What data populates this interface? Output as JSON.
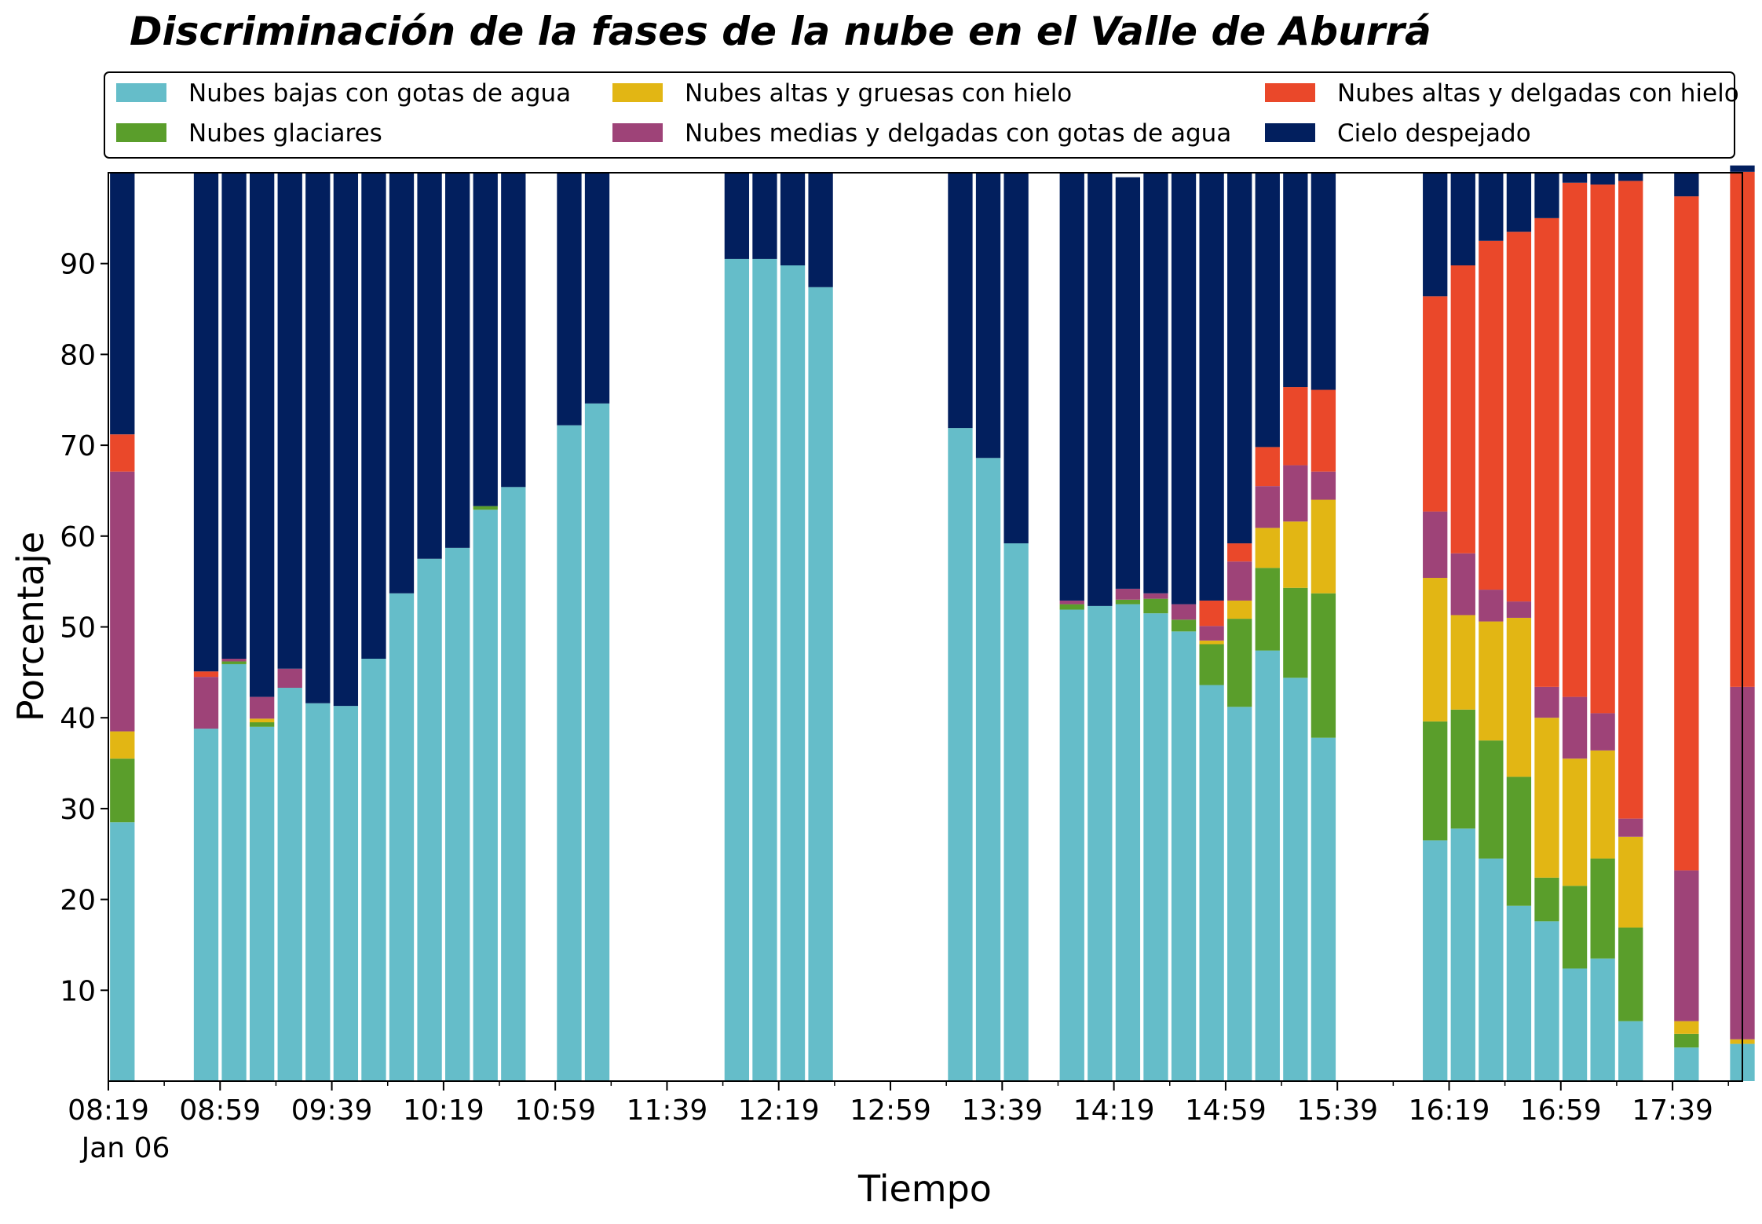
{
  "chart_data": {
    "type": "bar",
    "stacked": true,
    "title": "Discriminación de la fases de la nube en el Valle de Aburrá",
    "xlabel": "Tiempo",
    "ylabel": "Porcentaje",
    "ylim": [
      0,
      100
    ],
    "yticks": [
      10,
      20,
      30,
      40,
      50,
      60,
      70,
      80,
      90
    ],
    "xlim": [
      "08:19",
      "18:04"
    ],
    "xtick_labels": [
      "08:19",
      "08:59",
      "09:39",
      "10:19",
      "10:59",
      "11:39",
      "12:19",
      "12:59",
      "13:39",
      "14:19",
      "14:59",
      "15:39",
      "16:19",
      "16:59",
      "17:39"
    ],
    "x_date_label": "Jan 06",
    "grid": false,
    "legend_position": "top",
    "legend_columns": 3,
    "x": [
      "08:19",
      "08:49",
      "08:59",
      "09:09",
      "09:19",
      "09:29",
      "09:39",
      "09:49",
      "09:59",
      "10:09",
      "10:19",
      "10:29",
      "10:39",
      "10:59",
      "11:09",
      "11:59",
      "12:09",
      "12:19",
      "12:29",
      "13:19",
      "13:29",
      "13:39",
      "13:59",
      "14:09",
      "14:19",
      "14:29",
      "14:39",
      "14:49",
      "14:59",
      "15:09",
      "15:19",
      "15:29",
      "16:09",
      "16:19",
      "16:29",
      "16:39",
      "16:49",
      "16:59",
      "17:09",
      "17:19",
      "17:39",
      "17:59"
    ],
    "series": [
      {
        "name": "Nubes bajas con gotas de agua",
        "color": "#65bdc9",
        "values": [
          28.5,
          38.8,
          45.9,
          39,
          43.3,
          41.6,
          41.3,
          46.5,
          53.7,
          57.5,
          58.7,
          62.9,
          65.4,
          72.2,
          74.6,
          90.5,
          90.5,
          89.8,
          87.4,
          71.9,
          68.6,
          59.2,
          51.9,
          52.3,
          52.5,
          51.5,
          49.5,
          43.6,
          41.2,
          47.4,
          44.4,
          37.8,
          26.5,
          27.8,
          24.5,
          19.3,
          17.6,
          12.4,
          13.5,
          6.6,
          3.7,
          4.1
        ]
      },
      {
        "name": "Nubes glaciares",
        "color": "#5a9e2b",
        "values": [
          7,
          0,
          0.3,
          0.5,
          0,
          0,
          0,
          0,
          0,
          0,
          0,
          0.4,
          0,
          0,
          0,
          0,
          0,
          0,
          0,
          0,
          0,
          0,
          0.6,
          0,
          0.5,
          1.6,
          1.3,
          4.5,
          9.7,
          9.1,
          9.9,
          15.9,
          13.1,
          13.1,
          13,
          14.2,
          4.8,
          9.1,
          11,
          10.3,
          1.5,
          0
        ]
      },
      {
        "name": "Nubes altas y gruesas con hielo",
        "color": "#e2b614",
        "values": [
          3,
          0,
          0,
          0.4,
          0,
          0,
          0,
          0,
          0,
          0,
          0,
          0,
          0,
          0,
          0,
          0,
          0,
          0,
          0,
          0,
          0,
          0,
          0,
          0,
          0,
          0,
          0,
          0.4,
          2,
          4.4,
          7.3,
          10.3,
          15.8,
          10.4,
          13.1,
          17.5,
          17.6,
          14,
          11.9,
          10,
          1.4,
          0.5
        ]
      },
      {
        "name": "Nubes medias y delgadas con gotas de agua",
        "color": "#9e4378",
        "values": [
          28.6,
          5.7,
          0.3,
          2.4,
          2.1,
          0,
          0,
          0,
          0,
          0,
          0,
          0,
          0,
          0,
          0,
          0,
          0,
          0,
          0,
          0,
          0,
          0,
          0.4,
          0,
          1.2,
          0.6,
          1.7,
          1.6,
          4.3,
          4.6,
          6.2,
          3.1,
          7.3,
          6.8,
          3.5,
          1.8,
          3.4,
          6.8,
          4.1,
          2,
          16.6,
          38.8
        ]
      },
      {
        "name": "Nubes altas y delgadas con hielo",
        "color": "#ea482a",
        "values": [
          4.1,
          0.6,
          0,
          0,
          0,
          0,
          0,
          0,
          0,
          0,
          0,
          0,
          0,
          0,
          0,
          0,
          0,
          0,
          0,
          0,
          0,
          0,
          0,
          0,
          0,
          0,
          0,
          2.8,
          2,
          4.3,
          8.6,
          9,
          23.7,
          31.7,
          38.4,
          40.7,
          51.6,
          56.6,
          58.2,
          70.2,
          74.2,
          56.7
        ]
      },
      {
        "name": "Cielo despejado",
        "color": "#021f5e",
        "values": [
          28.8,
          54.9,
          53.5,
          57.7,
          54.6,
          58.4,
          58.7,
          53.5,
          46.3,
          42.5,
          41.3,
          36.7,
          34.6,
          27.8,
          25.4,
          9.5,
          9.5,
          10.2,
          12.6,
          28.1,
          31.4,
          40.8,
          47.1,
          47.7,
          45.3,
          46.3,
          47.5,
          47.1,
          40.8,
          30.2,
          23.6,
          23.9,
          13.6,
          10.2,
          7.5,
          6.5,
          5,
          1.1,
          1.3,
          0.9,
          2.6,
          0.7
        ]
      }
    ]
  }
}
